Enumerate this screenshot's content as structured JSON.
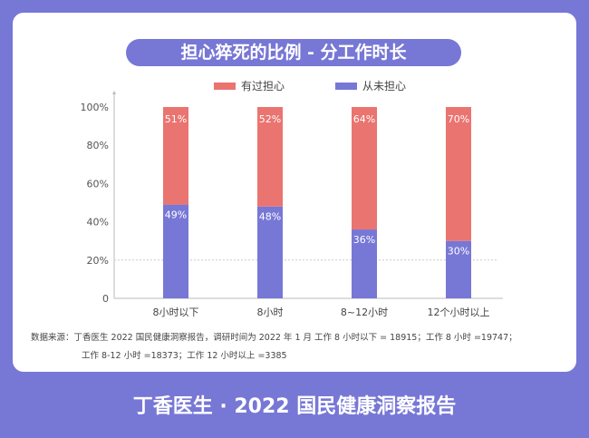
{
  "chart_data": {
    "type": "bar",
    "stacked": true,
    "title": "担心猝死的比例 - 分工作时长",
    "categories": [
      "8小时以下",
      "8小时",
      "8~12小时",
      "12个小时以上"
    ],
    "series": [
      {
        "name": "有过担心",
        "values": [
          51,
          52,
          64,
          70
        ],
        "color": "#ea7470"
      },
      {
        "name": "从未担心",
        "values": [
          49,
          48,
          36,
          30
        ],
        "color": "#7777d6"
      }
    ],
    "ylim": [
      0,
      100
    ],
    "yticks": [
      "0",
      "20%",
      "40%",
      "60%",
      "80%",
      "100%"
    ],
    "reference_line": 20,
    "legend": "top"
  },
  "source_line1": "数据来源：丁香医生 2022 国民健康洞察报告，调研时间为 2022 年 1 月 工作 8 小时以下 = 18915；工作 8 小时 =19747；",
  "source_line2": "工作 8-12 小时 =18373；工作 12 小时以上 =3385",
  "footer": "丁香医生 · 2022 国民健康洞察报告",
  "colors": {
    "background": "#7777d6",
    "worried": "#ea7470",
    "never": "#7777d6"
  }
}
